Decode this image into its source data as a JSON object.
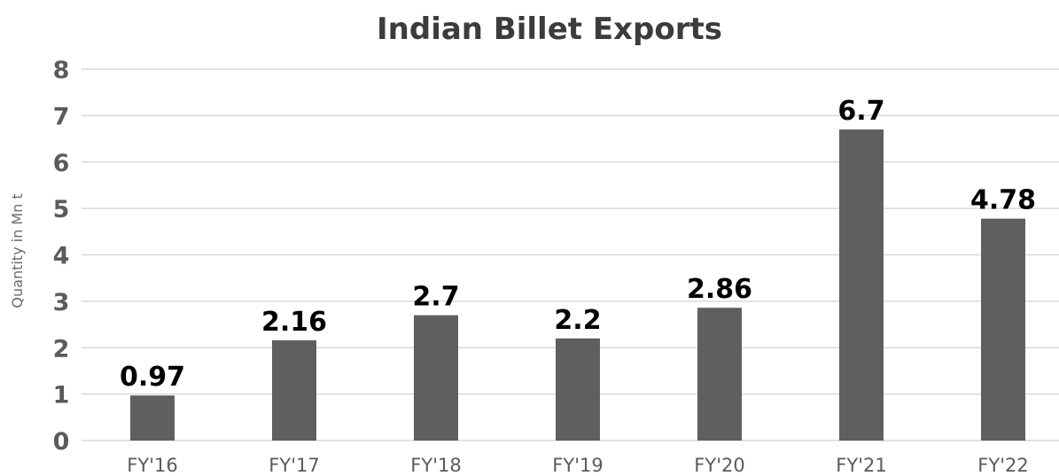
{
  "chart_data": {
    "type": "bar",
    "title": "Indian Billet Exports",
    "xlabel": "",
    "ylabel": "Quantity in Mn t",
    "categories": [
      "FY'16",
      "FY'17",
      "FY'18",
      "FY'19",
      "FY'20",
      "FY'21",
      "FY'22"
    ],
    "values": [
      0.97,
      2.16,
      2.7,
      2.2,
      2.86,
      6.7,
      4.78
    ],
    "data_labels": [
      "0.97",
      "2.16",
      "2.7",
      "2.2",
      "2.86",
      "6.7",
      "4.78"
    ],
    "ylim": [
      0,
      8
    ],
    "yticks": [
      0,
      1,
      2,
      3,
      4,
      5,
      6,
      7,
      8
    ],
    "ytick_labels": [
      "0",
      "1",
      "2",
      "3",
      "4",
      "5",
      "6",
      "7",
      "8"
    ],
    "grid": true,
    "legend": "none",
    "bar_color": "#5f5f61",
    "grid_color": "#d9d9d9"
  }
}
